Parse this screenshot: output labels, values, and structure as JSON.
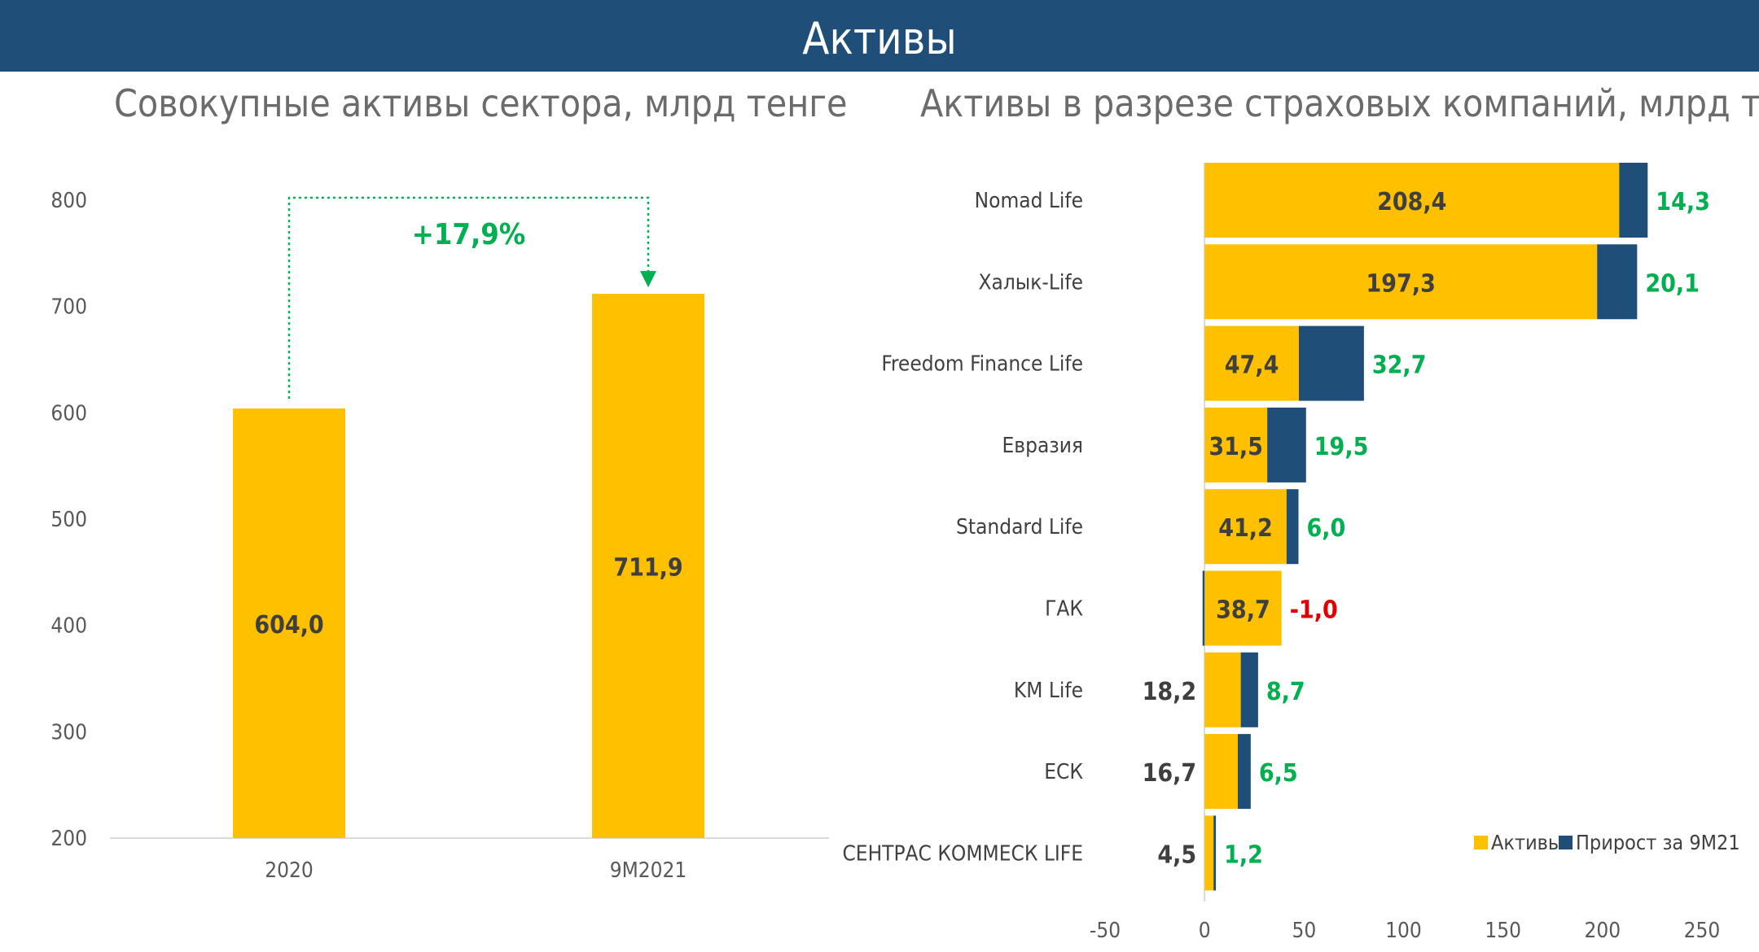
{
  "header": {
    "title": "Активы"
  },
  "colors": {
    "assets": "#ffc000",
    "growth": "#1f4e79",
    "positive": "#00b050",
    "negative": "#e00000",
    "header_bg": "#1f4e79"
  },
  "chart_data": [
    {
      "type": "bar",
      "title": "Совокупные активы сектора, млрд тенге",
      "categories": [
        "2020",
        "9M2021"
      ],
      "values": [
        604.0,
        711.9
      ],
      "value_labels": [
        "604,0",
        "711,9"
      ],
      "ylim": [
        200,
        800
      ],
      "yticks": [
        "200",
        "300",
        "400",
        "500",
        "600",
        "700",
        "800"
      ],
      "annotation": "+17,9%",
      "grid": false
    },
    {
      "type": "bar",
      "orientation": "horizontal",
      "stacked": true,
      "title": "Активы в разрезе страховых компаний, млрд тенге",
      "categories": [
        "Nomad Life",
        "Халык-Life",
        "Freedom Finance Life",
        "Евразия",
        "Standard Life",
        "ГАК",
        "KM Life",
        "ЕСК",
        "СЕНТРАС КОММЕСК LIFE"
      ],
      "series": [
        {
          "name": "Активы",
          "values": [
            208.4,
            197.3,
            47.4,
            31.5,
            41.2,
            38.7,
            18.2,
            16.7,
            4.5
          ],
          "labels": [
            "208,4",
            "197,3",
            "47,4",
            "31,5",
            "41,2",
            "38,7",
            "18,2",
            "16,7",
            "4,5"
          ]
        },
        {
          "name": "Прирост за 9М21",
          "values": [
            14.3,
            20.1,
            32.7,
            19.5,
            6.0,
            -1.0,
            8.7,
            6.5,
            1.2
          ],
          "labels": [
            "14,3",
            "20,1",
            "32,7",
            "19,5",
            "6,0",
            "-1,0",
            "8,7",
            "6,5",
            "1,2"
          ]
        }
      ],
      "xlim": [
        -50,
        250
      ],
      "xticks": [
        "-50",
        "0",
        "50",
        "100",
        "150",
        "200",
        "250"
      ],
      "legend": "bottom-right",
      "grid": false
    }
  ]
}
